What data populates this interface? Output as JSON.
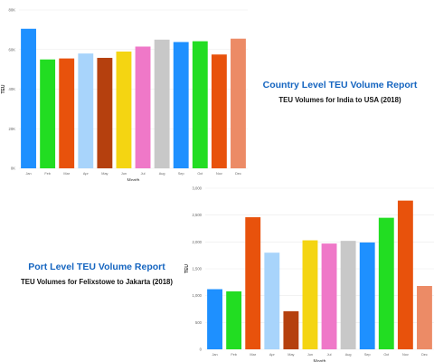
{
  "headings": {
    "country_title": "Country Level TEU Volume Report",
    "country_subtitle": "TEU Volumes for India to USA (2018)",
    "port_title": "Port Level TEU Volume Report",
    "port_subtitle": "TEU Volumes for Felixstowe to Jakarta (2018)"
  },
  "chart_data": [
    {
      "type": "bar",
      "xlabel": "Month",
      "ylabel": "TEU",
      "ylim": [
        0,
        80000
      ],
      "yticks": [
        0,
        20000,
        40000,
        60000,
        80000
      ],
      "ytick_labels": [
        "0K",
        "20K",
        "40K",
        "60K",
        "80K"
      ],
      "grid": true,
      "categories": [
        "Jan",
        "Feb",
        "Mar",
        "Apr",
        "May",
        "Jun",
        "Jul",
        "Aug",
        "Sep",
        "Oct",
        "Nov",
        "Dec"
      ],
      "values": [
        70500,
        55000,
        55500,
        58000,
        55800,
        59000,
        61500,
        65000,
        63800,
        64200,
        57500,
        65500
      ],
      "colors": [
        "#1e90ff",
        "#22dd22",
        "#e8520c",
        "#a8d4fb",
        "#b5400e",
        "#f4d512",
        "#ef78c8",
        "#c8c8c8",
        "#1e90ff",
        "#22dd22",
        "#e8520c",
        "#ec8b66"
      ]
    },
    {
      "type": "bar",
      "xlabel": "Month",
      "ylabel": "TEU",
      "ylim": [
        0,
        3000
      ],
      "yticks": [
        0,
        500,
        1000,
        1500,
        2000,
        2500,
        3000
      ],
      "ytick_labels": [
        "0",
        "500",
        "1,000",
        "1,500",
        "2,000",
        "2,500",
        "3,000"
      ],
      "grid": true,
      "categories": [
        "Jan",
        "Feb",
        "Mar",
        "Apr",
        "May",
        "Jun",
        "Jul",
        "Aug",
        "Sep",
        "Oct",
        "Nov",
        "Dec"
      ],
      "values": [
        1120,
        1080,
        2460,
        1800,
        710,
        2030,
        1970,
        2020,
        1990,
        2450,
        2770,
        1180
      ],
      "colors": [
        "#1e90ff",
        "#22dd22",
        "#e8520c",
        "#a8d4fb",
        "#b5400e",
        "#f4d512",
        "#ef78c8",
        "#c8c8c8",
        "#1e90ff",
        "#22dd22",
        "#e8520c",
        "#ec8b66"
      ]
    }
  ]
}
